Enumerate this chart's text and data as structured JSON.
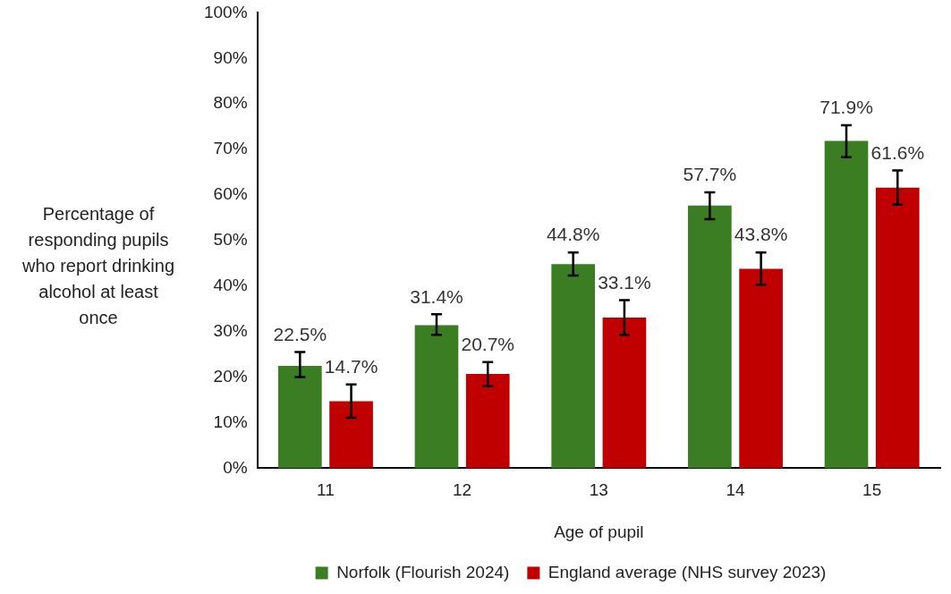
{
  "chart_data": {
    "type": "bar",
    "xlabel": "Age of pupil",
    "ylabel": "Percentage of responding pupils who report drinking alcohol at least once",
    "categories": [
      "11",
      "12",
      "13",
      "14",
      "15"
    ],
    "series": [
      {
        "name": "Norfolk (Flourish 2024)",
        "color": "#3a7d22",
        "values": [
          22.5,
          31.4,
          44.8,
          57.7,
          71.9
        ],
        "errors": [
          [
            20,
            25.5
          ],
          [
            29.3,
            33.8
          ],
          [
            42.3,
            47.4
          ],
          [
            54.7,
            60.6
          ],
          [
            68.3,
            75.3
          ]
        ],
        "value_labels": [
          "22.5%",
          "31.4%",
          "44.8%",
          "57.7%",
          "71.9%"
        ]
      },
      {
        "name": "England average (NHS survey 2023)",
        "color": "#c00000",
        "values": [
          14.7,
          20.7,
          33.1,
          43.8,
          61.6
        ],
        "errors": [
          [
            11.1,
            18.4
          ],
          [
            18,
            23.3
          ],
          [
            29.3,
            36.9
          ],
          [
            40.3,
            47.4
          ],
          [
            57.9,
            65.4
          ]
        ],
        "value_labels": [
          "14.7%",
          "20.7%",
          "33.1%",
          "43.8%",
          "61.6%"
        ]
      }
    ],
    "ylim": [
      0,
      100
    ],
    "yticks": [
      {
        "value": 0,
        "label": "0%"
      },
      {
        "value": 10,
        "label": "10%"
      },
      {
        "value": 20,
        "label": "20%"
      },
      {
        "value": 30,
        "label": "30%"
      },
      {
        "value": 40,
        "label": "40%"
      },
      {
        "value": 50,
        "label": "50%"
      },
      {
        "value": 60,
        "label": "60%"
      },
      {
        "value": 70,
        "label": "70%"
      },
      {
        "value": 80,
        "label": "80%"
      },
      {
        "value": 90,
        "label": "90%"
      },
      {
        "value": 100,
        "label": "100%"
      }
    ],
    "grid": false,
    "legend": "bottom"
  }
}
